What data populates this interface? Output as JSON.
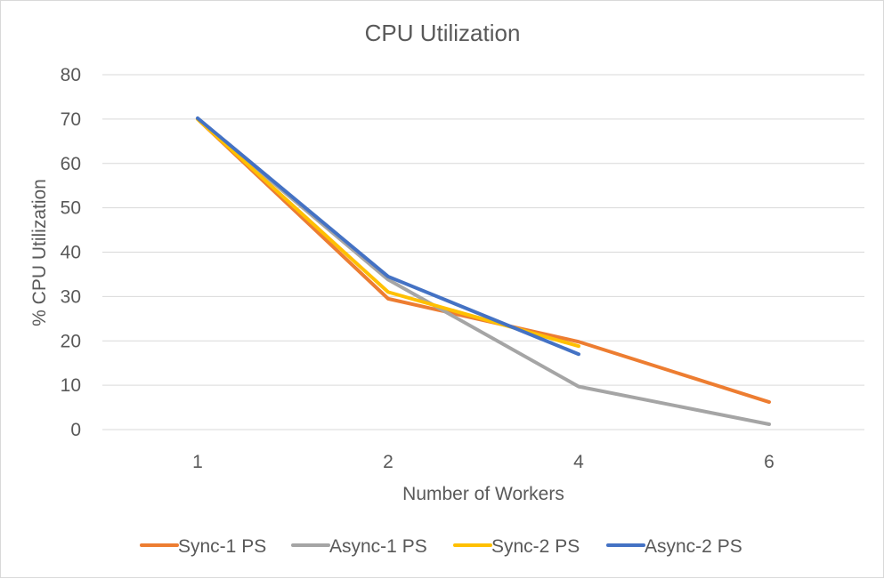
{
  "chart_data": {
    "type": "line",
    "title": "CPU Utilization",
    "xlabel": "Number of Workers",
    "ylabel": "% CPU Utilization",
    "categories": [
      "1",
      "2",
      "4",
      "6"
    ],
    "ylim": [
      0,
      80
    ],
    "yticks": [
      0,
      10,
      20,
      30,
      40,
      50,
      60,
      70,
      80
    ],
    "grid": true,
    "legend": "bottom",
    "series": [
      {
        "name": "Sync-1 PS",
        "color": "#ed7d31",
        "values": [
          70,
          29.5,
          19.8,
          6.2
        ]
      },
      {
        "name": "Async-1 PS",
        "color": "#a5a5a5",
        "values": [
          70,
          33.8,
          9.7,
          1.2
        ]
      },
      {
        "name": "Sync-2 PS",
        "color": "#ffc000",
        "values": [
          70,
          31,
          18.8,
          null
        ]
      },
      {
        "name": "Async-2 PS",
        "color": "#4472c4",
        "values": [
          70.2,
          34.5,
          17,
          null
        ]
      }
    ]
  }
}
